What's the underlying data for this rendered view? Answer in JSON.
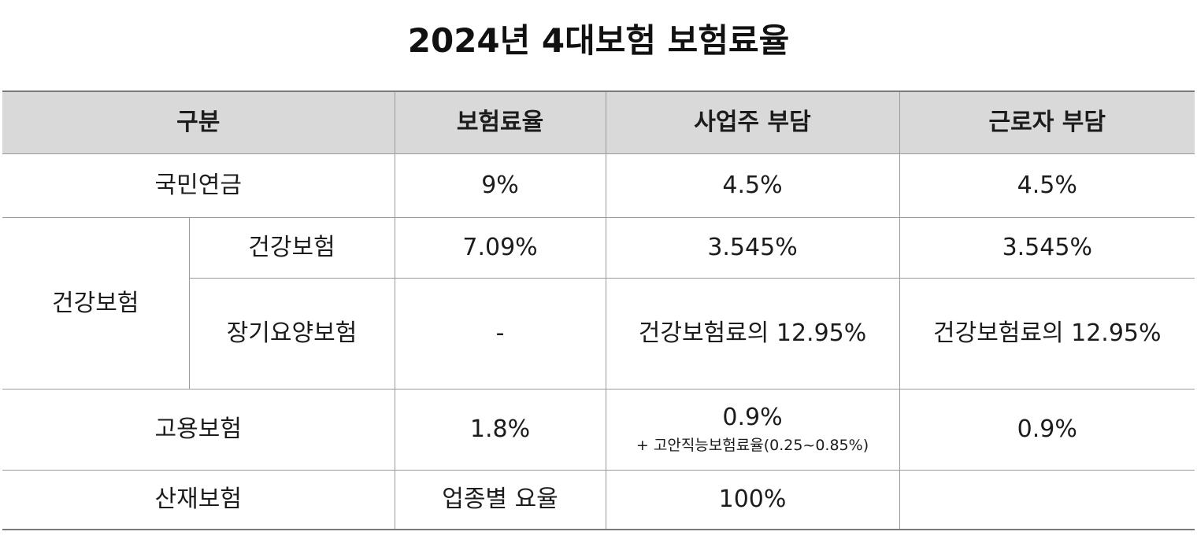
{
  "title": "2024년 4대보험 보험료율",
  "header": {
    "category": "구분",
    "rate": "보험료율",
    "employer": "사업주 부담",
    "employee": "근로자 부담"
  },
  "rows": {
    "pension": {
      "name": "국민연금",
      "rate": "9%",
      "employer": "4.5%",
      "employee": "4.5%"
    },
    "health_group": {
      "name": "건강보험"
    },
    "health": {
      "name": "건강보험",
      "rate": "7.09%",
      "employer": "3.545%",
      "employee": "3.545%"
    },
    "longterm_care": {
      "name": "장기요양보험",
      "rate": "-",
      "employer": "건강보험료의 12.95%",
      "employee": "건강보험료의 12.95%"
    },
    "employment": {
      "name": "고용보험",
      "rate": "1.8%",
      "employer": "0.9%",
      "employer_note": "+ 고안직능보험료율(0.25~0.85%)",
      "employee": "0.9%"
    },
    "industrial": {
      "name": "산재보험",
      "rate": "업종별 요율",
      "employer": "100%",
      "employee": ""
    }
  },
  "colors": {
    "header_bg": "#d9d9d9",
    "highlight_text": "#e8201a",
    "border": "#9a9a9a"
  }
}
